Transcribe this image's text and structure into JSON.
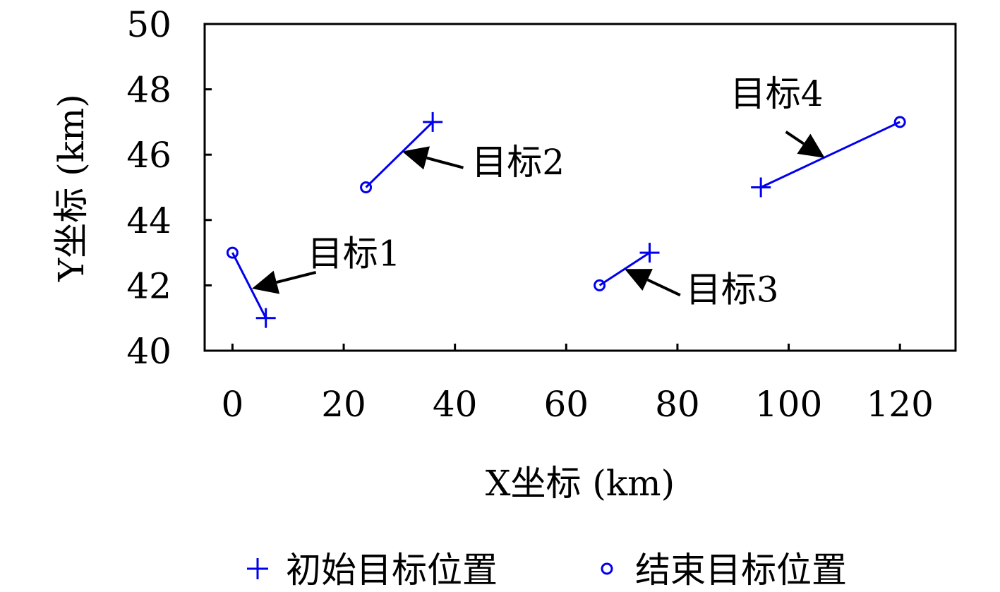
{
  "chart_data": {
    "type": "scatter",
    "xlabel": "X坐标 (km)",
    "ylabel": "Y坐标 (km)",
    "xlim": [
      -5,
      130
    ],
    "ylim": [
      40,
      50
    ],
    "xticks": [
      0,
      20,
      40,
      60,
      80,
      100,
      120
    ],
    "yticks": [
      40,
      42,
      44,
      46,
      48,
      50
    ],
    "grid": false,
    "legend_position": "bottom",
    "colors": {
      "series": "#0000ee",
      "axes": "#000000",
      "arrows": "#000000"
    },
    "series": [
      {
        "name": "初始目标位置",
        "marker": "plus",
        "points": [
          [
            6,
            41
          ],
          [
            36,
            47
          ],
          [
            75,
            43
          ],
          [
            95,
            45
          ]
        ]
      },
      {
        "name": "结束目标位置",
        "marker": "circle",
        "points": [
          [
            0,
            43
          ],
          [
            24,
            45
          ],
          [
            66,
            42
          ],
          [
            120,
            47
          ]
        ]
      }
    ],
    "tracks": [
      {
        "from": [
          6,
          41
        ],
        "to": [
          0,
          43
        ]
      },
      {
        "from": [
          36,
          47
        ],
        "to": [
          24,
          45
        ]
      },
      {
        "from": [
          75,
          43
        ],
        "to": [
          66,
          42
        ]
      },
      {
        "from": [
          95,
          45
        ],
        "to": [
          120,
          47
        ]
      }
    ],
    "annotations": [
      {
        "text": "目标1",
        "text_at": [
          13.5,
          42.6
        ],
        "tail": [
          15,
          42.4
        ],
        "tip": [
          3.5,
          41.9
        ]
      },
      {
        "text": "目标2",
        "text_at": [
          43,
          45.4
        ],
        "tail": [
          41.5,
          45.6
        ],
        "tip": [
          30.5,
          46.1
        ]
      },
      {
        "text": "目标3",
        "text_at": [
          81.5,
          41.5
        ],
        "tail": [
          80.5,
          41.7
        ],
        "tip": [
          70.5,
          42.5
        ]
      },
      {
        "text": "目标4",
        "text_at": [
          89.5,
          47.5
        ],
        "tail": [
          99.5,
          46.7
        ],
        "tip": [
          106.5,
          45.9
        ]
      }
    ]
  }
}
